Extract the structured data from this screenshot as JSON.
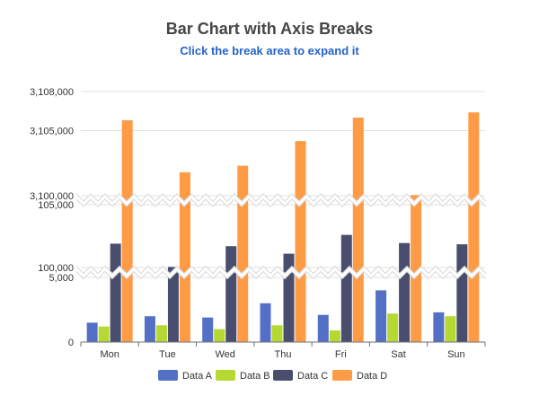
{
  "title": "Bar Chart with Axis Breaks",
  "subtitle": "Click the break area to expand it",
  "chart_data": {
    "type": "bar",
    "categories": [
      "Mon",
      "Tue",
      "Wed",
      "Thu",
      "Fri",
      "Sat",
      "Sun"
    ],
    "series": [
      {
        "name": "Data A",
        "color": "#5470c6",
        "values": [
          1500,
          2000,
          1900,
          3000,
          2100,
          4000,
          2300
        ]
      },
      {
        "name": "Data B",
        "color": "#b5d832",
        "values": [
          1200,
          1300,
          1000,
          1300,
          900,
          2200,
          2000
        ]
      },
      {
        "name": "Data C",
        "color": "#4a4e6e",
        "values": [
          101900,
          100050,
          101700,
          101100,
          102600,
          101950,
          101850
        ]
      },
      {
        "name": "Data D",
        "color": "#ff9a45",
        "values": [
          3105800,
          3101800,
          3102300,
          3104200,
          3106000,
          3100050,
          3106400
        ]
      }
    ],
    "y_ticks": [
      "0",
      "5,000",
      "100,000",
      "105,000",
      "3,100,000",
      "3,105,000",
      "3,108,000"
    ],
    "axis_breaks": [
      [
        5000,
        100000
      ],
      [
        105000,
        3100000
      ]
    ],
    "ylim": [
      0,
      3108000
    ],
    "legend_position": "bottom"
  }
}
